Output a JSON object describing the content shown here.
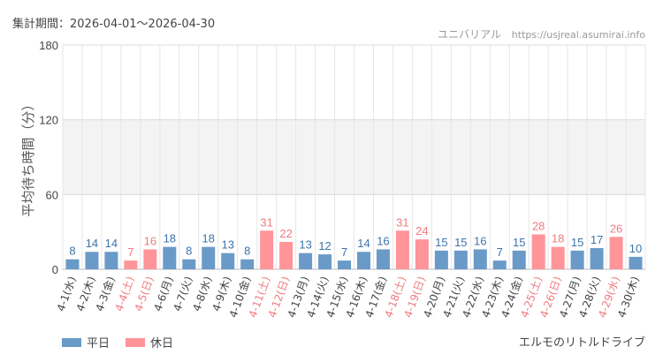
{
  "header": {
    "period_label": "集計期間：2026-04-01～2026-04-30",
    "site_name": "ユニバリアル",
    "site_url": "https://usjreal.asumirai.info"
  },
  "footer": {
    "attraction_name": "エルモのリトルドライブ"
  },
  "colors": {
    "weekday": "#6a9ac8",
    "holiday": "#ff9499",
    "weekday_label": "#3d73a8",
    "holiday_label": "#f07b80",
    "tick_text": "#444444"
  },
  "chart_data": {
    "type": "bar",
    "ylabel": "平均待ち時間（分）",
    "ylim": [
      0,
      180
    ],
    "yticks": [
      0,
      60,
      120,
      180
    ],
    "grid": true,
    "legend": {
      "position": "bottom-left",
      "entries": [
        "平日",
        "休日"
      ]
    },
    "categories": [
      "4-1(水)",
      "4-2(木)",
      "4-3(金)",
      "4-4(土)",
      "4-5(日)",
      "4-6(月)",
      "4-7(火)",
      "4-8(水)",
      "4-9(木)",
      "4-10(金)",
      "4-11(土)",
      "4-12(日)",
      "4-13(月)",
      "4-14(火)",
      "4-15(水)",
      "4-16(木)",
      "4-17(金)",
      "4-18(土)",
      "4-19(日)",
      "4-20(月)",
      "4-21(火)",
      "4-22(水)",
      "4-23(木)",
      "4-24(金)",
      "4-25(土)",
      "4-26(日)",
      "4-27(月)",
      "4-28(火)",
      "4-29(水)",
      "4-30(木)"
    ],
    "values": [
      8,
      14,
      14,
      7,
      16,
      18,
      8,
      18,
      13,
      8,
      31,
      22,
      13,
      12,
      7,
      14,
      16,
      31,
      24,
      15,
      15,
      16,
      7,
      15,
      28,
      18,
      15,
      17,
      26,
      10
    ],
    "day_type": [
      "平日",
      "平日",
      "平日",
      "休日",
      "休日",
      "平日",
      "平日",
      "平日",
      "平日",
      "平日",
      "休日",
      "休日",
      "平日",
      "平日",
      "平日",
      "平日",
      "平日",
      "休日",
      "休日",
      "平日",
      "平日",
      "平日",
      "平日",
      "平日",
      "休日",
      "休日",
      "平日",
      "平日",
      "休日",
      "平日"
    ]
  }
}
